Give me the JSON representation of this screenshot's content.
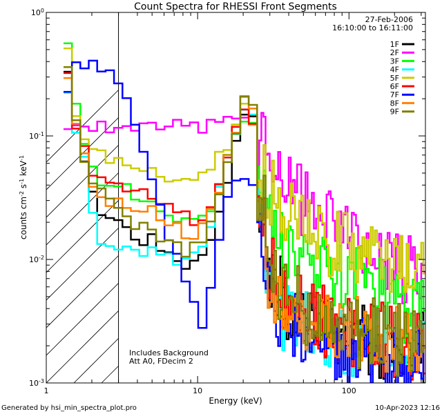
{
  "chart_data": {
    "type": "line",
    "title": "Count Spectra for RHESSI Front Segments",
    "xlabel": "Energy (keV)",
    "ylabel_main": "counts cm",
    "ylabel_exp1": "-2",
    "ylabel_mid": " s",
    "ylabel_exp2": "-1",
    "ylabel_end": " keV",
    "ylabel_exp3": "-1",
    "xscale": "log",
    "yscale": "log",
    "xlim": [
      1,
      320
    ],
    "ylim": [
      0.001,
      1.0
    ],
    "x_ticks": [
      {
        "value": 1,
        "label": "1"
      },
      {
        "value": 10,
        "label": "10"
      },
      {
        "value": 100,
        "label": "100"
      }
    ],
    "y_ticks": [
      {
        "value": 1,
        "base": "10",
        "exp": "0"
      },
      {
        "value": 0.1,
        "base": "10",
        "exp": "-1"
      },
      {
        "value": 0.01,
        "base": "10",
        "exp": "-2"
      },
      {
        "value": 0.001,
        "base": "10",
        "exp": "-3"
      }
    ],
    "hatch_region": [
      1,
      3
    ],
    "date": "27-Feb-2006",
    "time_range": "16:10:00 to 16:11:00",
    "annotations": [
      "Includes Background",
      "Att A0, FDecim 2"
    ],
    "series": [
      {
        "name": "1F",
        "color": "#000000",
        "values": [
          0.38,
          0.12,
          0.06,
          0.035,
          0.025,
          0.022,
          0.02,
          0.018,
          0.016,
          0.015,
          0.014,
          0.012,
          0.01,
          0.009,
          0.0085,
          0.009,
          0.012,
          0.016,
          0.025,
          0.045,
          0.1,
          0.17,
          0.14,
          0.03,
          0.008,
          0.0055,
          0.0045,
          0.004,
          0.0035,
          0.0032,
          0.003,
          0.0028,
          0.0026,
          0.0025,
          0.0024,
          0.0023,
          0.0022,
          0.0021,
          0.0021,
          0.002,
          0.002,
          0.002,
          0.0019
        ]
      },
      {
        "name": "2F",
        "color": "#ff00ff",
        "values": [
          0.12,
          0.12,
          0.12,
          0.12,
          0.12,
          0.12,
          0.12,
          0.12,
          0.12,
          0.12,
          0.12,
          0.12,
          0.12,
          0.12,
          0.12,
          0.12,
          0.12,
          0.12,
          0.13,
          0.14,
          0.15,
          0.16,
          0.15,
          0.08,
          0.06,
          0.048,
          0.04,
          0.034,
          0.03,
          0.026,
          0.023,
          0.02,
          0.018,
          0.016,
          0.014,
          0.012,
          0.011,
          0.01,
          0.0095,
          0.009,
          0.0085,
          0.008,
          0.0075
        ]
      },
      {
        "name": "3F",
        "color": "#00ff00",
        "values": [
          0.6,
          0.2,
          0.09,
          0.05,
          0.045,
          0.04,
          0.04,
          0.038,
          0.035,
          0.032,
          0.03,
          0.028,
          0.025,
          0.022,
          0.02,
          0.02,
          0.022,
          0.028,
          0.04,
          0.07,
          0.11,
          0.13,
          0.12,
          0.035,
          0.018,
          0.014,
          0.012,
          0.011,
          0.01,
          0.0095,
          0.009,
          0.0085,
          0.008,
          0.0075,
          0.007,
          0.0065,
          0.006,
          0.0055,
          0.005,
          0.0045,
          0.004,
          0.0038,
          0.0035
        ]
      },
      {
        "name": "4F",
        "color": "#00ffff",
        "values": [
          0.2,
          0.1,
          0.06,
          0.025,
          0.015,
          0.013,
          0.012,
          0.012,
          0.012,
          0.011,
          0.011,
          0.01,
          0.01,
          0.01,
          0.01,
          0.011,
          0.014,
          0.02,
          0.035,
          0.06,
          0.11,
          0.15,
          0.13,
          0.02,
          0.006,
          0.004,
          0.0035,
          0.003,
          0.0028,
          0.0026,
          0.0025,
          0.0024,
          0.0023,
          0.0022,
          0.0021,
          0.0021,
          0.002,
          0.002,
          0.0019,
          0.0019,
          0.0018,
          0.0018,
          0.0018
        ]
      },
      {
        "name": "5F",
        "color": "#cccc00",
        "values": [
          0.5,
          0.15,
          0.1,
          0.08,
          0.07,
          0.065,
          0.06,
          0.058,
          0.055,
          0.052,
          0.05,
          0.048,
          0.046,
          0.045,
          0.045,
          0.046,
          0.05,
          0.056,
          0.065,
          0.08,
          0.12,
          0.16,
          0.14,
          0.05,
          0.035,
          0.028,
          0.024,
          0.021,
          0.019,
          0.017,
          0.015,
          0.014,
          0.013,
          0.012,
          0.011,
          0.0105,
          0.01,
          0.0095,
          0.009,
          0.0085,
          0.008,
          0.0075,
          0.007
        ]
      },
      {
        "name": "6F",
        "color": "#ff0000",
        "values": [
          0.3,
          0.13,
          0.075,
          0.05,
          0.045,
          0.042,
          0.04,
          0.038,
          0.036,
          0.034,
          0.032,
          0.03,
          0.028,
          0.025,
          0.022,
          0.02,
          0.022,
          0.028,
          0.04,
          0.07,
          0.12,
          0.17,
          0.14,
          0.025,
          0.008,
          0.0055,
          0.0048,
          0.0042,
          0.0038,
          0.0035,
          0.0033,
          0.0031,
          0.0029,
          0.0027,
          0.0026,
          0.0025,
          0.0024,
          0.0023,
          0.0022,
          0.0021,
          0.0021,
          0.002,
          0.002
        ]
      },
      {
        "name": "7F",
        "color": "#0000ff",
        "values": [
          0.25,
          0.4,
          0.38,
          0.36,
          0.34,
          0.3,
          0.24,
          0.18,
          0.12,
          0.07,
          0.04,
          0.025,
          0.015,
          0.01,
          0.007,
          0.0045,
          0.003,
          0.006,
          0.015,
          0.03,
          0.045,
          0.05,
          0.04,
          0.012,
          0.005,
          0.0035,
          0.003,
          0.0027,
          0.0025,
          0.0023,
          0.0022,
          0.0021,
          0.002,
          0.0019,
          0.0018,
          0.0018,
          0.0017,
          0.0017,
          0.0016,
          0.0016,
          0.0016,
          0.0015,
          0.0015
        ]
      },
      {
        "name": "8F",
        "color": "#ff8000",
        "values": [
          0.28,
          0.13,
          0.065,
          0.04,
          0.032,
          0.03,
          0.028,
          0.027,
          0.026,
          0.025,
          0.024,
          0.022,
          0.02,
          0.018,
          0.016,
          0.016,
          0.018,
          0.024,
          0.035,
          0.065,
          0.11,
          0.19,
          0.15,
          0.025,
          0.008,
          0.0055,
          0.0046,
          0.004,
          0.0036,
          0.0033,
          0.0031,
          0.0029,
          0.0027,
          0.0026,
          0.0025,
          0.0024,
          0.0023,
          0.0022,
          0.0021,
          0.0021,
          0.002,
          0.002,
          0.002
        ]
      },
      {
        "name": "9F",
        "color": "#808000",
        "values": [
          0.4,
          0.13,
          0.07,
          0.042,
          0.035,
          0.03,
          0.026,
          0.023,
          0.02,
          0.018,
          0.016,
          0.015,
          0.014,
          0.013,
          0.012,
          0.012,
          0.014,
          0.02,
          0.032,
          0.06,
          0.11,
          0.2,
          0.16,
          0.028,
          0.009,
          0.006,
          0.005,
          0.0045,
          0.004,
          0.0037,
          0.0034,
          0.0032,
          0.003,
          0.0028,
          0.0027,
          0.0026,
          0.0025,
          0.0024,
          0.0023,
          0.0022,
          0.0021,
          0.0021,
          0.002
        ]
      }
    ]
  },
  "footer": {
    "generated_by": "Generated by hsi_min_spectra_plot.pro",
    "date_stamp": "10-Apr-2023 12:16"
  }
}
